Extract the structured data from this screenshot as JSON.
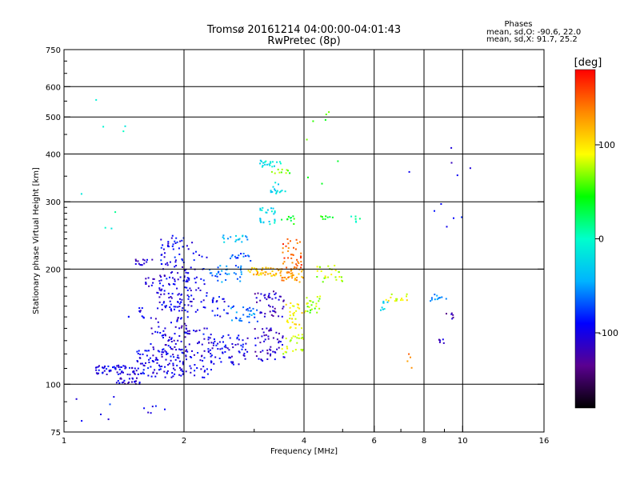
{
  "chart_data": {
    "type": "scatter",
    "title": "Tromsø 20161214 04:00:00-04:01:43",
    "subtitle": "RwPretec (8p)",
    "xlabel": "Frequency [MHz]",
    "ylabel": "Stationary phase Virtual Height [km]",
    "x_scale": "log",
    "y_scale": "log",
    "xlim": [
      1,
      16
    ],
    "ylim": [
      75,
      750
    ],
    "x_ticks": [
      1,
      2,
      4,
      6,
      8,
      10,
      16
    ],
    "x_tick_labels": [
      "1",
      "2",
      "4",
      "6",
      "8",
      "10",
      "16"
    ],
    "x_minor_ticks": [
      3,
      5,
      7,
      9
    ],
    "y_ticks": [
      75,
      100,
      200,
      300,
      400,
      500,
      600,
      750
    ],
    "y_tick_labels": [
      "75",
      "100",
      "200",
      "300",
      "400",
      "500",
      "600",
      "750"
    ],
    "x_gridlines": [
      2,
      4,
      6,
      8,
      10
    ],
    "y_gridlines": [
      100,
      200,
      300,
      400,
      500,
      600
    ],
    "grid": true,
    "legend": {
      "title": "Phases",
      "lines": [
        "mean, sd,O: -90.6, 22.0",
        "mean, sd,X:  91.7, 25.2"
      ],
      "position": "top-right"
    },
    "colorbar": {
      "label": "[deg]",
      "range": [
        -180,
        180
      ],
      "ticks": [
        100,
        0,
        -100
      ],
      "tick_labels": [
        "100",
        "0",
        "-100"
      ],
      "colormap": [
        "#000000",
        "#5a0090",
        "#0000ff",
        "#00b4ff",
        "#00ffcc",
        "#00ff00",
        "#ffff00",
        "#ff8800",
        "#ff0000"
      ]
    },
    "clusters": [
      {
        "freq": [
          1.2,
          1.5
        ],
        "height": [
          106,
          112
        ],
        "phase": -100,
        "count": 55
      },
      {
        "freq": [
          1.35,
          1.55
        ],
        "height": [
          100,
          104
        ],
        "phase": -105,
        "count": 25
      },
      {
        "freq": [
          1.5,
          2.0
        ],
        "height": [
          104,
          124
        ],
        "phase": -100,
        "count": 110
      },
      {
        "freq": [
          1.65,
          2.1
        ],
        "height": [
          120,
          150
        ],
        "phase": -105,
        "count": 70
      },
      {
        "freq": [
          1.7,
          2.1
        ],
        "height": [
          155,
          200
        ],
        "phase": -100,
        "count": 90
      },
      {
        "freq": [
          1.75,
          2.0
        ],
        "height": [
          200,
          245
        ],
        "phase": -95,
        "count": 45
      },
      {
        "freq": [
          1.5,
          1.7
        ],
        "height": [
          205,
          212
        ],
        "phase": -110,
        "count": 15
      },
      {
        "freq": [
          1.45,
          1.6
        ],
        "height": [
          148,
          160
        ],
        "phase": -105,
        "count": 10
      },
      {
        "freq": [
          1.6,
          1.75
        ],
        "height": [
          180,
          190
        ],
        "phase": -110,
        "count": 10
      },
      {
        "freq": [
          2.0,
          2.35
        ],
        "height": [
          104,
          140
        ],
        "phase": -100,
        "count": 55
      },
      {
        "freq": [
          2.0,
          2.3
        ],
        "height": [
          150,
          240
        ],
        "phase": -95,
        "count": 45
      },
      {
        "freq": [
          2.3,
          2.9
        ],
        "height": [
          112,
          135
        ],
        "phase": -100,
        "count": 70
      },
      {
        "freq": [
          2.35,
          2.6
        ],
        "height": [
          150,
          170
        ],
        "phase": -95,
        "count": 20
      },
      {
        "freq": [
          2.6,
          3.1
        ],
        "height": [
          145,
          160
        ],
        "phase": -60,
        "count": 30
      },
      {
        "freq": [
          2.3,
          2.8
        ],
        "height": [
          185,
          205
        ],
        "phase": -60,
        "count": 35
      },
      {
        "freq": [
          2.5,
          2.9
        ],
        "height": [
          235,
          245
        ],
        "phase": -40,
        "count": 18
      },
      {
        "freq": [
          2.6,
          3.0
        ],
        "height": [
          210,
          220
        ],
        "phase": -70,
        "count": 15
      },
      {
        "freq": [
          3.0,
          3.6
        ],
        "height": [
          115,
          140
        ],
        "phase": -110,
        "count": 55
      },
      {
        "freq": [
          3.0,
          3.6
        ],
        "height": [
          150,
          175
        ],
        "phase": -115,
        "count": 45
      },
      {
        "freq": [
          2.9,
          3.5
        ],
        "height": [
          192,
          202
        ],
        "phase": 115,
        "count": 45
      },
      {
        "freq": [
          3.5,
          4.0
        ],
        "height": [
          185,
          200
        ],
        "phase": 130,
        "count": 35
      },
      {
        "freq": [
          3.5,
          3.95
        ],
        "height": [
          200,
          240
        ],
        "phase": 150,
        "count": 40
      },
      {
        "freq": [
          3.6,
          4.1
        ],
        "height": [
          140,
          165
        ],
        "phase": 95,
        "count": 35
      },
      {
        "freq": [
          3.5,
          4.0
        ],
        "height": [
          120,
          135
        ],
        "phase": 80,
        "count": 25
      },
      {
        "freq": [
          4.0,
          4.4
        ],
        "height": [
          150,
          170
        ],
        "phase": 70,
        "count": 20
      },
      {
        "freq": [
          4.3,
          5.0
        ],
        "height": [
          185,
          205
        ],
        "phase": 80,
        "count": 25
      },
      {
        "freq": [
          3.1,
          3.4
        ],
        "height": [
          262,
          290
        ],
        "phase": -20,
        "count": 25
      },
      {
        "freq": [
          3.1,
          3.5
        ],
        "height": [
          370,
          385
        ],
        "phase": -20,
        "count": 20
      },
      {
        "freq": [
          3.3,
          3.6
        ],
        "height": [
          315,
          340
        ],
        "phase": -30,
        "count": 15
      },
      {
        "freq": [
          3.3,
          3.7
        ],
        "height": [
          355,
          365
        ],
        "phase": 60,
        "count": 10
      },
      {
        "freq": [
          3.5,
          3.8
        ],
        "height": [
          262,
          275
        ],
        "phase": 40,
        "count": 10
      },
      {
        "freq": [
          4.4,
          4.8
        ],
        "height": [
          270,
          275
        ],
        "phase": 40,
        "count": 8
      },
      {
        "freq": [
          5.2,
          5.6
        ],
        "height": [
          265,
          275
        ],
        "phase": 0,
        "count": 6
      },
      {
        "freq": [
          6.3,
          7.3
        ],
        "height": [
          165,
          172
        ],
        "phase": 90,
        "count": 14
      },
      {
        "freq": [
          6.2,
          6.6
        ],
        "height": [
          155,
          165
        ],
        "phase": -20,
        "count": 8
      },
      {
        "freq": [
          8.3,
          9.2
        ],
        "height": [
          165,
          172
        ],
        "phase": -60,
        "count": 12
      },
      {
        "freq": [
          8.6,
          9.0
        ],
        "height": [
          127,
          131
        ],
        "phase": -110,
        "count": 6
      },
      {
        "freq": [
          9.1,
          9.5
        ],
        "height": [
          148,
          155
        ],
        "phase": -120,
        "count": 6
      },
      {
        "freq": [
          1.05,
          1.35
        ],
        "height": [
          78,
          95
        ],
        "phase": -90,
        "count": 6
      },
      {
        "freq": [
          1.5,
          1.8
        ],
        "height": [
          80,
          92
        ],
        "phase": -100,
        "count": 6
      },
      {
        "freq": [
          4.0,
          5.0
        ],
        "height": [
          300,
          550
        ],
        "phase": 50,
        "count": 8
      },
      {
        "freq": [
          7.0,
          10.5
        ],
        "height": [
          250,
          420
        ],
        "phase": -100,
        "count": 10
      },
      {
        "freq": [
          1.0,
          1.5
        ],
        "height": [
          250,
          600
        ],
        "phase": 0,
        "count": 8
      },
      {
        "freq": [
          7.2,
          7.6
        ],
        "height": [
          110,
          120
        ],
        "phase": 130,
        "count": 4
      }
    ]
  }
}
